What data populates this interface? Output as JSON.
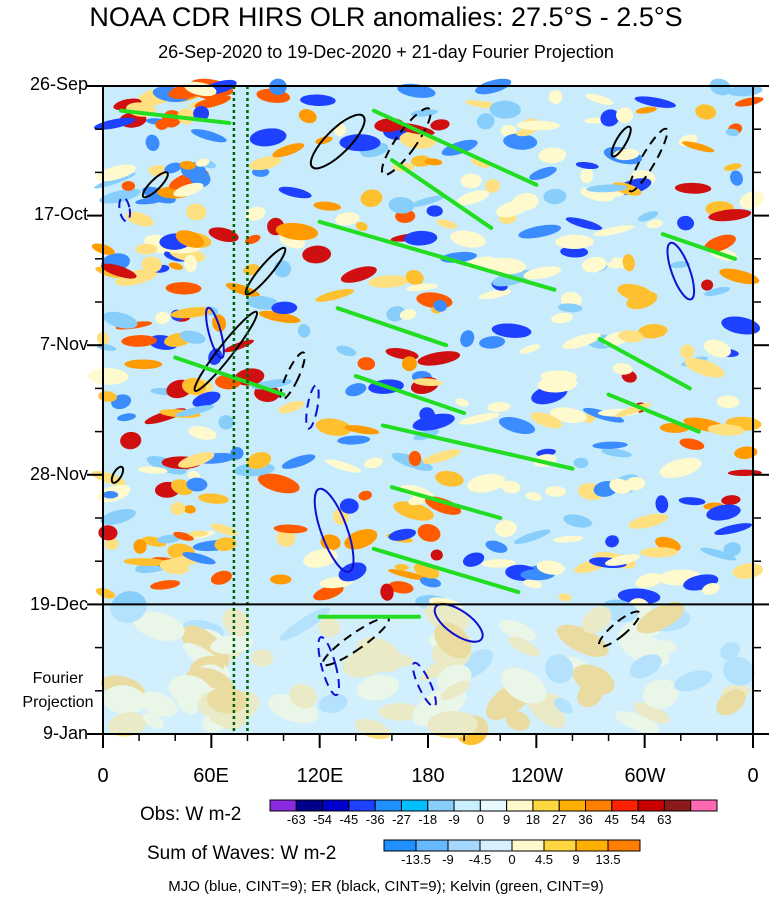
{
  "chart_data": {
    "type": "heatmap",
    "title": "NOAA CDR HIRS OLR anomalies: 27.5°S - 2.5°S",
    "subtitle": "26-Sep-2020 to 19-Dec-2020 + 21-day Fourier Projection",
    "x_tick_labels": [
      "0",
      "60E",
      "120E",
      "180",
      "120W",
      "60W",
      "0"
    ],
    "x_values": [
      0,
      60,
      120,
      180,
      240,
      300,
      360
    ],
    "y_tick_labels": [
      "26-Sep",
      "17-Oct",
      "7-Nov",
      "28-Nov",
      "19-Dec",
      "9-Jan"
    ],
    "y_days": [
      0,
      21,
      42,
      63,
      84,
      105
    ],
    "projection_label": [
      "Fourier",
      "Projection"
    ],
    "vertical_dotted_lines_lon": [
      72.5,
      80
    ],
    "obs_colorbar": {
      "label": "Obs: W m-2",
      "ticks": [
        "-63",
        "-54",
        "-45",
        "-36",
        "-27",
        "-18",
        "-9",
        "0",
        "9",
        "18",
        "27",
        "36",
        "45",
        "54",
        "63"
      ],
      "colors": [
        "#8a2be2",
        "#00008b",
        "#0000cd",
        "#1e40ff",
        "#1e90ff",
        "#00bfff",
        "#87cefa",
        "#c8f0ff",
        "#e6faff",
        "#fffacd",
        "#ffd740",
        "#ffb000",
        "#ff7f00",
        "#ff2000",
        "#c80000",
        "#8b1a1a",
        "#ff69b4"
      ]
    },
    "waves_colorbar": {
      "label": "Sum of Waves: W m-2",
      "ticks": [
        "-13.5",
        "-9",
        "-4.5",
        "0",
        "4.5",
        "9",
        "13.5"
      ],
      "colors": [
        "#1e90ff",
        "#66b8ff",
        "#a6d8ff",
        "#d8f0ff",
        "#fffacd",
        "#ffd740",
        "#ffb000",
        "#ff8000"
      ]
    },
    "legend_text": "MJO (blue, CINT=9); ER (black, CINT=9); Kelvin (green, CINT=9)",
    "series_colors": {
      "mjo": "#1010d0",
      "er": "#000000",
      "kelvin": "#22dd22"
    },
    "grid": false
  }
}
